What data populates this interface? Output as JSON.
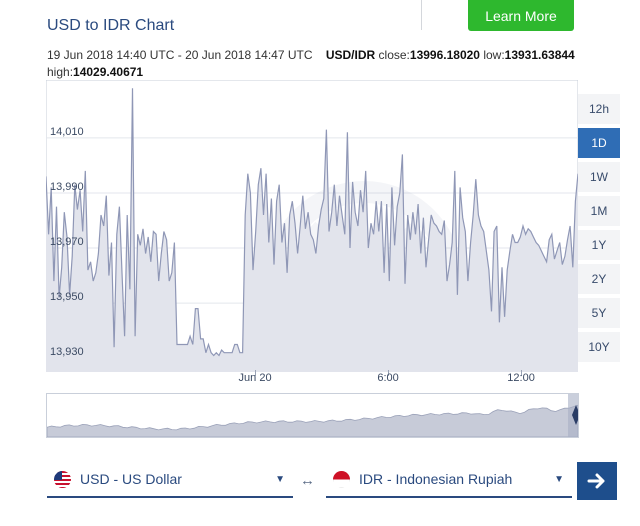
{
  "header": {
    "learn_more_label": "Learn More"
  },
  "title": "USD to IDR Chart",
  "meta": {
    "range": "19 Jun 2018 14:40 UTC - 20 Jun 2018 14:47 UTC",
    "pair": "USD/IDR",
    "close_label": "close:",
    "close_value": "13996.18020",
    "low_label": "low:",
    "low_value": "13931.63844",
    "high_label": "high:",
    "high_value": "14029.40671"
  },
  "ranges": {
    "items": [
      "12h",
      "1D",
      "1W",
      "1M",
      "1Y",
      "2Y",
      "5Y",
      "10Y"
    ],
    "selected": "1D"
  },
  "converter": {
    "from": "USD - US Dollar",
    "to": "IDR - Indonesian Rupiah",
    "swap_icon": "swap-arrows-icon",
    "go_icon": "arrow-right-icon"
  },
  "colors": {
    "accent": "#2f6db5",
    "line": "#8f97b6",
    "area": "#e2e4ec",
    "green": "#2eb82e",
    "navy": "#1e4e8c"
  },
  "chart_data": {
    "type": "area",
    "ylim": [
      13925,
      14031
    ],
    "y_ticks": [
      14010,
      13990,
      13970,
      13950,
      13930
    ],
    "y_tick_labels": [
      "14,010",
      "13,990",
      "13,970",
      "13,950",
      "13,930"
    ],
    "x_ticks": [
      {
        "label": "Jun 20",
        "at": 0.393
      },
      {
        "label": "6:00",
        "at": 0.643
      },
      {
        "label": "12:00",
        "at": 0.893
      }
    ],
    "x_range": [
      "2018-06-19 14:40",
      "2018-06-20 14:47"
    ],
    "grid": true,
    "series": [
      {
        "values": [
          13996,
          13975,
          13992,
          13958,
          13985,
          13952,
          13963,
          13983,
          13974,
          13953,
          13967,
          13993,
          13984,
          13991,
          13976,
          13998,
          13962,
          13965,
          13958,
          13961,
          13968,
          13982,
          13978,
          13989,
          13960,
          13972,
          13934,
          13975,
          13985,
          13961,
          13938,
          13982,
          13955,
          14028,
          13938,
          13975,
          13971,
          13977,
          13968,
          13974,
          13965,
          13976,
          13975,
          13958,
          13968,
          13976,
          13973,
          13958,
          13961,
          13972,
          13935,
          13935,
          13935,
          13935,
          13935,
          13938,
          13935,
          13948,
          13948,
          13937,
          13937,
          13932,
          13935,
          13932,
          13931,
          13932,
          13931,
          13933,
          13932,
          13932,
          13932,
          13932,
          13935,
          13935,
          13932,
          13932,
          13982,
          13997,
          13990,
          13962,
          13976,
          13993,
          13999,
          13982,
          13997,
          13972,
          13988,
          13964,
          13987,
          13993,
          13972,
          13979,
          13961,
          13982,
          13987,
          13979,
          13968,
          13978,
          13989,
          13977,
          13983,
          13975,
          13973,
          13968,
          13978,
          13984,
          13988,
          14013,
          13976,
          13983,
          13993,
          13978,
          13989,
          13982,
          13975,
          14012,
          13970,
          13994,
          13983,
          13978,
          13991,
          13983,
          13998,
          13970,
          13979,
          13975,
          13987,
          13976,
          13987,
          13961,
          13986,
          13958,
          13992,
          13971,
          13985,
          13990,
          14004,
          13957,
          13982,
          13973,
          13983,
          13975,
          13986,
          13968,
          13981,
          13963,
          13973,
          13982,
          13979,
          13978,
          13976,
          13975,
          13980,
          13958,
          13964,
          13972,
          13998,
          13953,
          13992,
          13981,
          13976,
          13958,
          13972,
          13982,
          13995,
          13982,
          13978,
          13976,
          13969,
          13962,
          13947,
          13976,
          13978,
          13943,
          13963,
          13945,
          13962,
          13969,
          13975,
          13972,
          13972,
          13974,
          13978,
          13975,
          13977,
          13976,
          13974,
          13972,
          13971,
          13969,
          13967,
          13965,
          13973,
          13975,
          13966,
          13969,
          13972,
          13964,
          13967,
          13973,
          13978,
          13963,
          13987,
          13997
        ]
      }
    ]
  }
}
